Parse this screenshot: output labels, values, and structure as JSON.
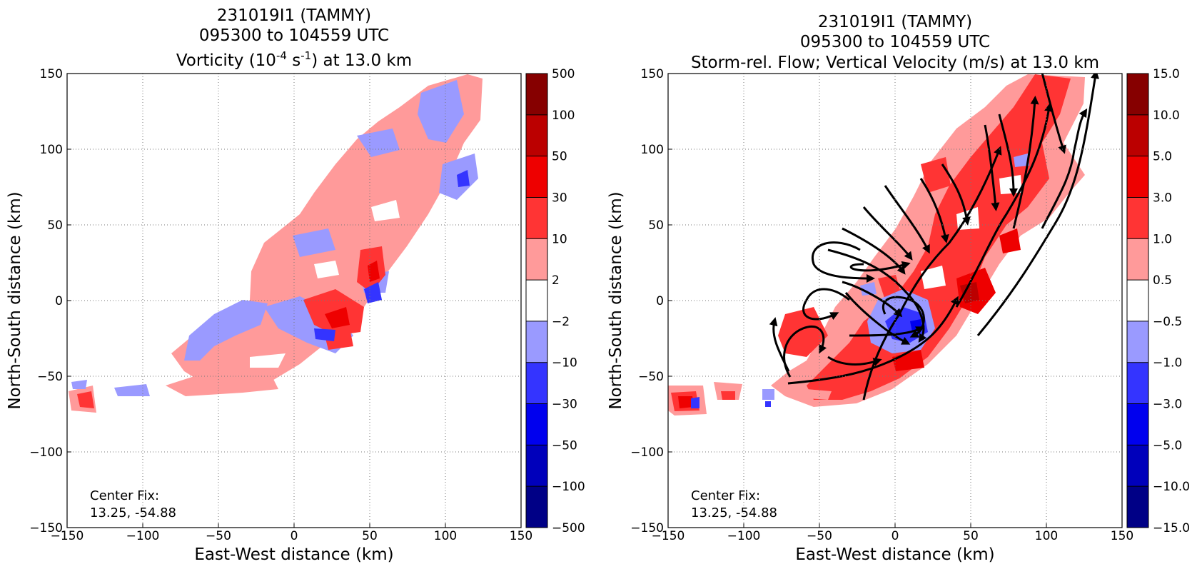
{
  "colors": {
    "blue_levels": [
      "#9a9aff",
      "#3434ff",
      "#0000ee",
      "#0000bb",
      "#000086"
    ],
    "red_levels": [
      "#ff9a9a",
      "#ff3434",
      "#ee0000",
      "#bb0000",
      "#860000"
    ],
    "white": "#ffffff",
    "streamline": "#000000"
  },
  "chart_data": [
    {
      "type": "heatmap",
      "title_line1": "231019I1 (TAMMY)",
      "title_line2": "095300 to 104559 UTC",
      "title_line3_pre": "Vorticity (10",
      "title_line3_sup1": "-4",
      "title_line3_mid": " s",
      "title_line3_sup2": "-1",
      "title_line3_post": ") at 13.0 km",
      "xlabel": "East-West distance (km)",
      "ylabel": "North-South distance (km)",
      "xlim": [
        -150,
        150
      ],
      "ylim": [
        -150,
        150
      ],
      "xticks": [
        "−150",
        "−100",
        "−50",
        "0",
        "50",
        "100",
        "150"
      ],
      "yticks": [
        "150",
        "100",
        "50",
        "0",
        "−50",
        "−100",
        "−150"
      ],
      "grid": true,
      "colorbar_labels": [
        "500",
        "100",
        "50",
        "30",
        "10",
        "2",
        "−2",
        "−10",
        "−30",
        "−50",
        "−100",
        "−500"
      ],
      "annotation_line1": "Center Fix:",
      "annotation_line2": "13.25, -54.88"
    },
    {
      "type": "heatmap",
      "title_line1": "231019I1 (TAMMY)",
      "title_line2": "095300 to 104559 UTC",
      "title_line3": "Storm-rel. Flow; Vertical Velocity (m/s) at 13.0 km",
      "xlabel": "East-West distance (km)",
      "ylabel": "North-South distance (km)",
      "xlim": [
        -150,
        150
      ],
      "ylim": [
        -150,
        150
      ],
      "xticks": [
        "−150",
        "−100",
        "−50",
        "0",
        "50",
        "100",
        "150"
      ],
      "yticks": [
        "150",
        "100",
        "50",
        "0",
        "−50",
        "−100",
        "−150"
      ],
      "grid": true,
      "colorbar_labels": [
        "15.0",
        "10.0",
        "5.0",
        "3.0",
        "1.0",
        "0.5",
        "−0.5",
        "−1.0",
        "−3.0",
        "−5.0",
        "−10.0",
        "−15.0"
      ],
      "annotation_line1": "Center Fix:",
      "annotation_line2": "13.25, -54.88"
    }
  ]
}
